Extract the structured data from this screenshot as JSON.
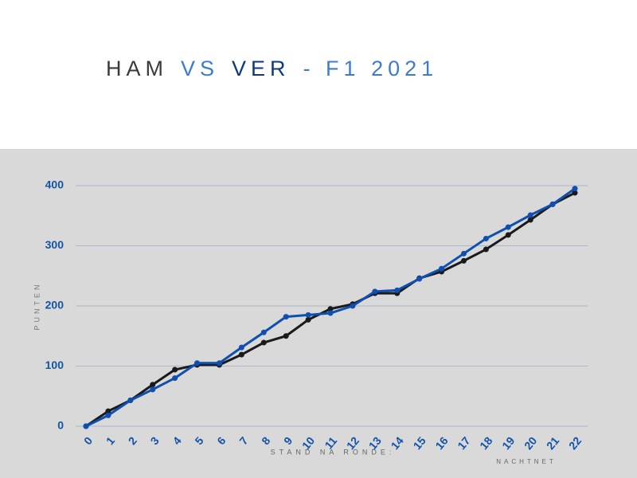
{
  "chart_data": {
    "type": "line",
    "title": [
      {
        "text": "HAM",
        "color": "#3a3a3a"
      },
      {
        "text": "VS",
        "color": "#3d7cc9"
      },
      {
        "text": "VER",
        "color": "#0d3a7a"
      },
      {
        "text": "- F1 2021",
        "color": "#3d7cc9"
      }
    ],
    "x_label": "STAND NA RONDE:",
    "y_label": "PUNTEN",
    "watermark": "NACHTNET",
    "categories": [
      "0",
      "1",
      "2",
      "3",
      "4",
      "5",
      "6",
      "7",
      "8",
      "9",
      "10",
      "11",
      "12",
      "13",
      "14",
      "15",
      "16",
      "17",
      "18",
      "19",
      "20",
      "21",
      "22"
    ],
    "series": [
      {
        "color": "#1a1a1a",
        "values": [
          0,
          25,
          43,
          69,
          94,
          102,
          102,
          119,
          139,
          150,
          177,
          195,
          203,
          221,
          221,
          246,
          257,
          275,
          294,
          318,
          343,
          369,
          388
        ]
      },
      {
        "color": "#0e4fb0",
        "values": [
          0,
          18,
          43,
          61,
          80,
          105,
          105,
          131,
          156,
          182,
          185,
          188,
          200,
          224,
          226,
          245,
          262,
          287,
          312,
          331,
          351,
          369,
          395
        ]
      }
    ],
    "ylim": [
      0,
      400
    ],
    "yticks": [
      0,
      100,
      200,
      300,
      400
    ],
    "grid": true
  }
}
